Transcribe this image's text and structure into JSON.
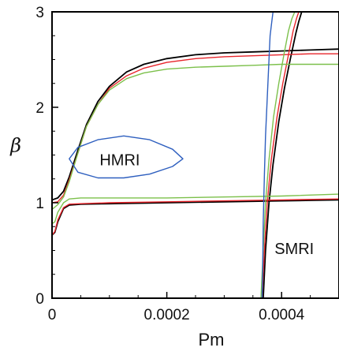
{
  "chart_data": {
    "type": "line",
    "xlabel": "Pm",
    "ylabel": "β",
    "xlim": [
      0,
      0.0005
    ],
    "ylim": [
      0,
      3
    ],
    "x_ticks": [
      0,
      0.0002,
      0.0004
    ],
    "x_tick_labels": [
      "0",
      "0.0002",
      "0.0004"
    ],
    "y_ticks": [
      0,
      1,
      2,
      3
    ],
    "y_tick_labels": [
      "0",
      "1",
      "2",
      "3"
    ],
    "grid": false,
    "annotations": [
      {
        "text": "HMRI",
        "x": 0.000118,
        "y": 1.46
      },
      {
        "text": "SMRI",
        "x": 0.000422,
        "y": 0.53
      }
    ],
    "colors": {
      "black": "#000000",
      "red": "#e8252b",
      "green": "#7cc04b",
      "blue": "#2e5fbf"
    },
    "series": [
      {
        "color": "black",
        "x": [
          0.0,
          1e-05,
          2e-05,
          3e-05,
          4.5e-05,
          6e-05,
          8e-05,
          0.0001,
          0.00013,
          0.00016,
          0.0002,
          0.00025,
          0.0003,
          0.00035,
          0.0004,
          0.00045,
          0.0005
        ],
        "y": [
          1.03,
          1.05,
          1.12,
          1.27,
          1.55,
          1.82,
          2.06,
          2.22,
          2.37,
          2.45,
          2.51,
          2.55,
          2.57,
          2.58,
          2.59,
          2.6,
          2.61
        ]
      },
      {
        "color": "black",
        "x": [
          0.0,
          5e-06,
          1e-05,
          2e-05,
          3e-05,
          5e-05,
          0.0001,
          0.0002,
          0.0003,
          0.0004,
          0.0005
        ],
        "y": [
          0.66,
          0.69,
          0.8,
          0.94,
          0.975,
          0.985,
          0.99,
          1.0,
          1.01,
          1.02,
          1.03
        ]
      },
      {
        "color": "black",
        "x": [
          0.000368,
          0.000372,
          0.000378,
          0.000385,
          0.000395,
          0.000405,
          0.000415,
          0.000425,
          0.00043,
          0.000435
        ],
        "y": [
          0.0,
          0.5,
          1.0,
          1.4,
          1.85,
          2.2,
          2.5,
          2.78,
          2.9,
          3.0
        ]
      },
      {
        "color": "red",
        "x": [
          0.0,
          1e-05,
          2e-05,
          3e-05,
          4.5e-05,
          6e-05,
          8e-05,
          0.0001,
          0.00013,
          0.00016,
          0.0002,
          0.00025,
          0.0003,
          0.00035,
          0.0004,
          0.00045,
          0.0005
        ],
        "y": [
          1.0,
          1.01,
          1.08,
          1.24,
          1.52,
          1.8,
          2.03,
          2.2,
          2.33,
          2.41,
          2.47,
          2.51,
          2.53,
          2.54,
          2.55,
          2.56,
          2.56
        ]
      },
      {
        "color": "red",
        "x": [
          0.0,
          5e-06,
          1e-05,
          2e-05,
          3e-05,
          5e-05,
          0.0001,
          0.0002,
          0.0003,
          0.0004,
          0.0005
        ],
        "y": [
          0.66,
          0.7,
          0.82,
          0.95,
          0.985,
          0.99,
          1.0,
          1.01,
          1.02,
          1.03,
          1.04
        ]
      },
      {
        "color": "red",
        "x": [
          0.000366,
          0.00037,
          0.000375,
          0.000382,
          0.000392,
          0.000402,
          0.000412,
          0.00042,
          0.000426,
          0.00043
        ],
        "y": [
          0.0,
          0.5,
          1.0,
          1.45,
          1.9,
          2.25,
          2.55,
          2.8,
          2.93,
          3.0
        ]
      },
      {
        "color": "green",
        "x": [
          0.0,
          1e-05,
          2e-05,
          3e-05,
          4.5e-05,
          6e-05,
          8e-05,
          0.0001,
          0.00013,
          0.00016,
          0.0002,
          0.00025,
          0.0003,
          0.00035,
          0.0004,
          0.00045,
          0.0005
        ],
        "y": [
          0.93,
          0.98,
          1.06,
          1.22,
          1.52,
          1.8,
          2.03,
          2.18,
          2.3,
          2.36,
          2.4,
          2.42,
          2.43,
          2.44,
          2.45,
          2.45,
          2.45
        ]
      },
      {
        "color": "green",
        "x": [
          0.0,
          5e-06,
          1e-05,
          2e-05,
          3e-05,
          5e-05,
          0.0001,
          0.0002,
          0.0003,
          0.0004,
          0.0005
        ],
        "y": [
          0.78,
          0.8,
          0.9,
          1.0,
          1.04,
          1.05,
          1.05,
          1.05,
          1.06,
          1.07,
          1.09
        ]
      },
      {
        "color": "green",
        "x": [
          0.000364,
          0.000368,
          0.000372,
          0.000378,
          0.000386,
          0.000395,
          0.000404,
          0.000412,
          0.000418,
          0.000423
        ],
        "y": [
          0.0,
          0.5,
          1.0,
          1.45,
          1.9,
          2.25,
          2.55,
          2.8,
          2.93,
          3.0
        ]
      },
      {
        "color": "blue",
        "x": [
          0.000366,
          0.000367,
          0.000368,
          0.00037,
          0.000372,
          0.000375,
          0.000378,
          0.00038,
          0.000383,
          0.000385
        ],
        "y": [
          0.0,
          0.3,
          0.8,
          1.3,
          1.7,
          2.1,
          2.5,
          2.75,
          2.9,
          3.0
        ]
      },
      {
        "color": "blue",
        "closed": true,
        "x": [
          3e-05,
          4.5e-05,
          8e-05,
          0.000125,
          0.00017,
          0.00021,
          0.000228,
          0.00021,
          0.00017,
          0.000125,
          8e-05,
          4.5e-05,
          3e-05
        ],
        "y": [
          1.46,
          1.58,
          1.66,
          1.7,
          1.66,
          1.56,
          1.46,
          1.38,
          1.3,
          1.26,
          1.26,
          1.32,
          1.46
        ]
      }
    ]
  }
}
